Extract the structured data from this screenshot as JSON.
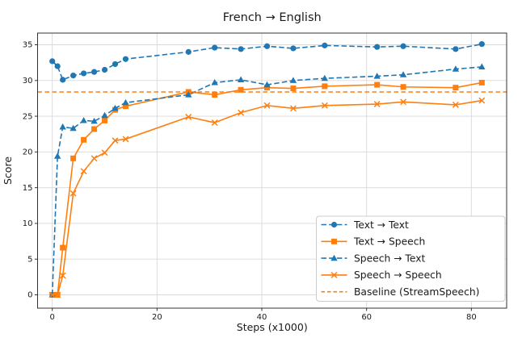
{
  "figure": {
    "title": "French → English"
  },
  "chart_data": {
    "type": "line",
    "title": "French → English",
    "xlabel": "Steps (x1000)",
    "ylabel": "Score",
    "grid": true,
    "legend_position": "lower right",
    "xlim": [
      -2.8,
      86.7
    ],
    "ylim": [
      -1.9,
      36.6
    ],
    "x_ticks": [
      0,
      20,
      40,
      60,
      80
    ],
    "y_ticks": [
      0,
      5,
      10,
      15,
      20,
      25,
      30,
      35
    ],
    "x": [
      0,
      1,
      2,
      4,
      6,
      8,
      10,
      12,
      14,
      26,
      31,
      36,
      41,
      46,
      52,
      62,
      67,
      77,
      82
    ],
    "series": [
      {
        "name": "Text → Text",
        "color": "#1f77b4",
        "linestyle": "dashed",
        "marker": "circle",
        "values": [
          32.7,
          32.0,
          30.1,
          30.7,
          31.0,
          31.2,
          31.5,
          32.3,
          33.0,
          34.0,
          34.6,
          34.4,
          34.8,
          34.5,
          34.9,
          34.7,
          34.8,
          34.4,
          35.1
        ]
      },
      {
        "name": "Text → Speech",
        "color": "#ff7f0e",
        "linestyle": "solid",
        "marker": "square",
        "values": [
          0,
          0,
          6.6,
          19.1,
          21.7,
          23.2,
          24.4,
          25.9,
          26.4,
          28.4,
          28.0,
          28.7,
          29.0,
          28.9,
          29.2,
          29.4,
          29.1,
          29.0,
          29.7
        ]
      },
      {
        "name": "Speech → Text",
        "color": "#1f77b4",
        "linestyle": "dashed",
        "marker": "triangle",
        "values": [
          0,
          19.4,
          23.5,
          23.3,
          24.4,
          24.3,
          25.1,
          26.1,
          26.9,
          28.0,
          29.7,
          30.1,
          29.4,
          30.0,
          30.3,
          30.6,
          30.8,
          31.6,
          31.9
        ]
      },
      {
        "name": "Speech → Speech",
        "color": "#ff7f0e",
        "linestyle": "solid",
        "marker": "x",
        "values": [
          0,
          0,
          2.7,
          14.2,
          17.3,
          19.1,
          19.9,
          21.6,
          21.8,
          24.9,
          24.1,
          25.5,
          26.5,
          26.1,
          26.5,
          26.7,
          27.0,
          26.6,
          27.2
        ]
      }
    ],
    "baseline": {
      "name": "Baseline (StreamSpeech)",
      "value": 28.4,
      "color": "#ff7f0e",
      "linestyle": "dashed"
    }
  },
  "colors": {
    "blue": "#1f77b4",
    "orange": "#ff7f0e",
    "grid": "#d9d9d9",
    "spine": "#333333",
    "text": "#1a1a1a",
    "legend_border": "#cccccc",
    "background": "#ffffff"
  }
}
